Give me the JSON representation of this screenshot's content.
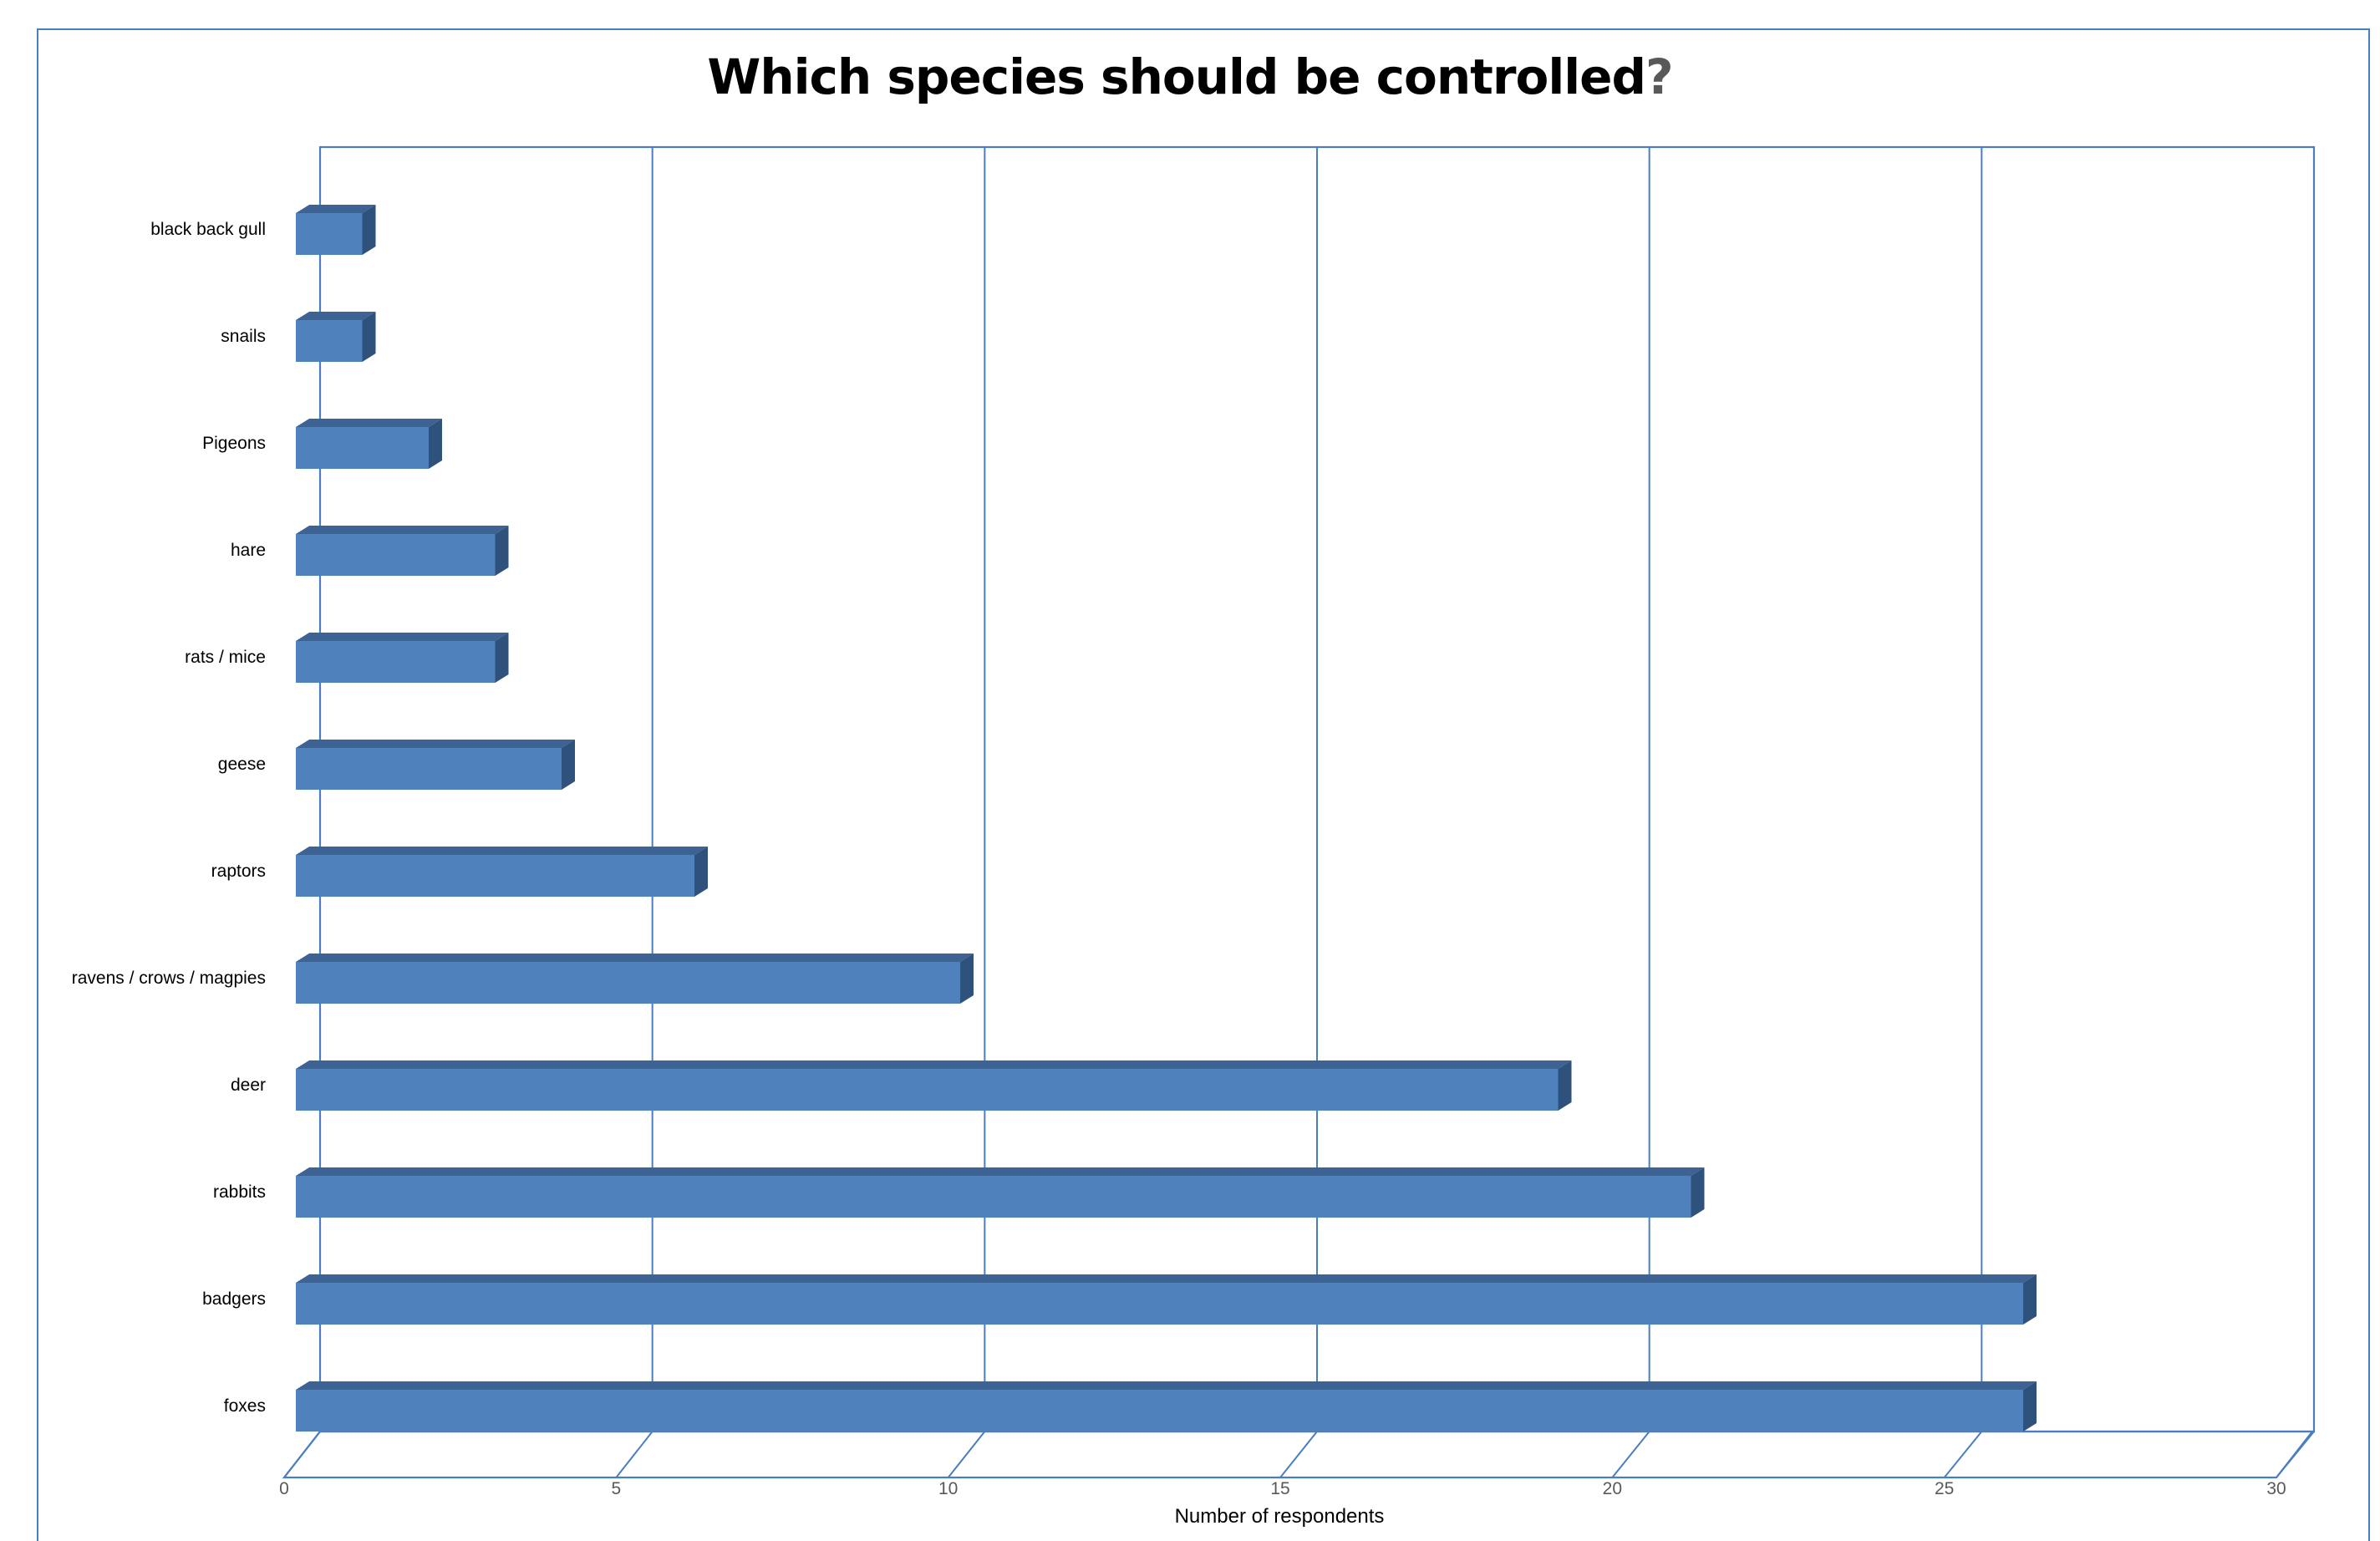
{
  "chart_data": {
    "type": "bar",
    "orientation": "horizontal",
    "title_main": "Which species should be controlled",
    "title_mark": "?",
    "categories": [
      "foxes",
      "badgers",
      "rabbits",
      "deer",
      "ravens / crows / magpies",
      "raptors",
      "geese",
      "rats / mice",
      "hare",
      "Pigeons",
      "snails",
      "black back gull"
    ],
    "values": [
      26,
      26,
      21,
      19,
      10,
      6,
      4,
      3,
      3,
      2,
      1,
      1
    ],
    "xlabel": "Number of respondents",
    "ylabel": "",
    "xlim": [
      0,
      30
    ],
    "xticks": [
      "0",
      "5",
      "10",
      "15",
      "20",
      "25",
      "30"
    ],
    "grid": true,
    "style": "3d-bar",
    "colors": {
      "bar_front": "#4f81bd",
      "bar_top": "#3c6393",
      "bar_side": "#2f527d",
      "grid": "#4a7ebf",
      "frame": "#4a7ebf"
    }
  }
}
